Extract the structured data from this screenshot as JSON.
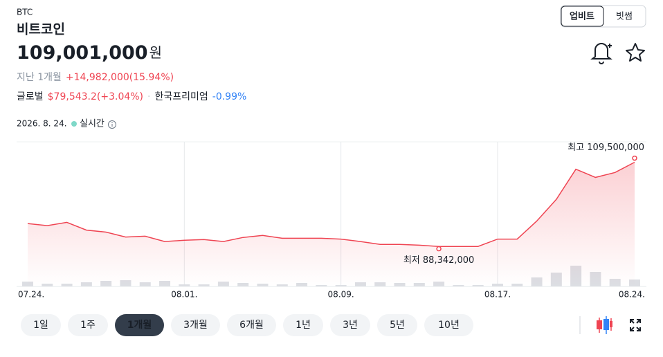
{
  "header": {
    "ticker": "BTC",
    "name": "비트코인",
    "price": "109,001,000",
    "price_unit": "원",
    "period_label": "지난 1개월",
    "change": "+14,982,000(15.94%)",
    "global_label": "글로벌",
    "global_value": "$79,543.2(+3.04%)",
    "premium_label": "한국프리미엄",
    "premium_value": "-0.99%",
    "date": "2026. 8. 24.",
    "live": "실시간"
  },
  "exchange_tabs": [
    "업비트",
    "빗썸"
  ],
  "chart_data": {
    "type": "line",
    "color": "#ef4452",
    "x": [
      "07.24.",
      null,
      null,
      null,
      null,
      null,
      null,
      null,
      "08.01.",
      null,
      null,
      null,
      null,
      null,
      null,
      null,
      "08.09.",
      null,
      null,
      null,
      null,
      null,
      null,
      null,
      "08.17.",
      null,
      null,
      null,
      null,
      null,
      null,
      "08.24."
    ],
    "values": [
      94000000,
      93500000,
      94300000,
      92400000,
      91900000,
      90700000,
      90900000,
      89600000,
      89900000,
      90100000,
      89600000,
      90600000,
      91100000,
      90400000,
      90400000,
      90400000,
      90200000,
      89600000,
      88900000,
      88900000,
      88700000,
      88400000,
      88400000,
      88400000,
      90200000,
      90200000,
      94600000,
      99900000,
      107300000,
      105300000,
      106500000,
      109001000
    ],
    "ylim": [
      82000000,
      114000000
    ],
    "volumes": [
      7,
      4,
      4,
      6,
      8,
      9,
      6,
      8,
      3,
      3,
      7,
      5,
      4,
      3,
      5,
      2,
      2,
      6,
      6,
      5,
      5,
      7,
      2,
      2,
      4,
      4,
      13,
      20,
      30,
      21,
      11,
      10
    ],
    "volume_color": "#dcdee3",
    "volume_lim": [
      0,
      40
    ],
    "annotations": [
      {
        "text": "최고 109,500,000",
        "value": 109500000,
        "index": 31
      },
      {
        "text": "최저 88,342,000",
        "value": 88342000,
        "index": 21
      }
    ]
  },
  "range_buttons": [
    "1일",
    "1주",
    "1개월",
    "3개월",
    "6개월",
    "1년",
    "3년",
    "5년",
    "10년"
  ],
  "selected_range": 2
}
